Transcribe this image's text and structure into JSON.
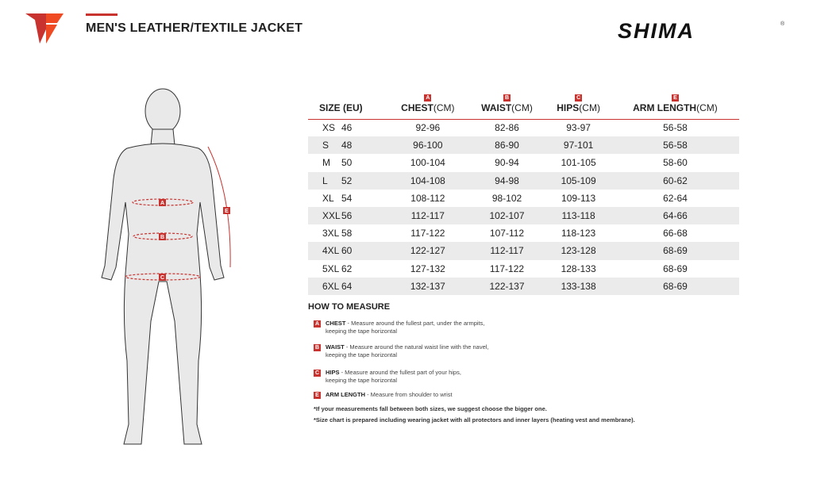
{
  "header": {
    "title": "MEN'S LEATHER/TEXTILE JACKET",
    "brand": "SHIMA",
    "registered": "®"
  },
  "colors": {
    "accent": "#c8332f",
    "row_alt": "#ebebeb"
  },
  "table": {
    "headers": [
      {
        "label": "SIZE (EU)",
        "unit": "",
        "badge": ""
      },
      {
        "label": "CHEST",
        "unit": "(CM)",
        "badge": "A"
      },
      {
        "label": "WAIST",
        "unit": "(CM)",
        "badge": "B"
      },
      {
        "label": "HIPS",
        "unit": "(CM)",
        "badge": "C"
      },
      {
        "label": "ARM LENGTH",
        "unit": "(CM)",
        "badge": "E"
      }
    ],
    "rows": [
      [
        "XS",
        "46",
        "92-96",
        "82-86",
        "93-97",
        "56-58"
      ],
      [
        "S",
        "48",
        "96-100",
        "86-90",
        "97-101",
        "56-58"
      ],
      [
        "M",
        "50",
        "100-104",
        "90-94",
        "101-105",
        "58-60"
      ],
      [
        "L",
        "52",
        "104-108",
        "94-98",
        "105-109",
        "60-62"
      ],
      [
        "XL",
        "54",
        "108-112",
        "98-102",
        "109-113",
        "62-64"
      ],
      [
        "XXL",
        "56",
        "112-117",
        "102-107",
        "113-118",
        "64-66"
      ],
      [
        "3XL",
        "58",
        "117-122",
        "107-112",
        "118-123",
        "66-68"
      ],
      [
        "4XL",
        "60",
        "122-127",
        "112-117",
        "123-128",
        "68-69"
      ],
      [
        "5XL",
        "62",
        "127-132",
        "117-122",
        "128-133",
        "68-69"
      ],
      [
        "6XL",
        "64",
        "132-137",
        "122-137",
        "133-138",
        "68-69"
      ]
    ]
  },
  "how_to_measure": {
    "title": "HOW TO MEASURE",
    "items": [
      {
        "badge": "A",
        "name": "CHEST",
        "text": " - Measure around the fullest part, under the armpits,",
        "text2": "keeping the tape horizontal"
      },
      {
        "badge": "B",
        "name": "WAIST",
        "text": " - Measure around the natural waist line with the navel,",
        "text2": "keeping the tape horizontal"
      },
      {
        "badge": "C",
        "name": "HIPS",
        "text": " - Measure around the fullest part of your hips,",
        "text2": "keeping the tape horizontal"
      },
      {
        "badge": "E",
        "name": "ARM LENGTH",
        "text": " - Measure from shoulder to wrist",
        "text2": ""
      }
    ],
    "notes": [
      "*If your measurements fall between both sizes, we suggest choose the bigger one.",
      "*Size chart is prepared including wearing jacket with all protectors and inner layers (heating vest and membrane)."
    ]
  },
  "figure": {
    "labels": [
      "A",
      "B",
      "C",
      "E"
    ]
  }
}
